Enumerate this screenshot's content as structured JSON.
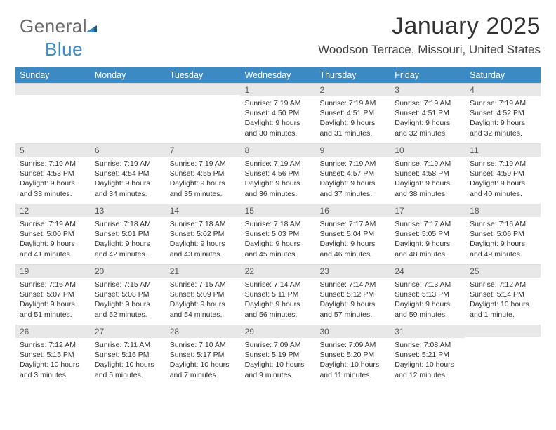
{
  "logo": {
    "part1": "General",
    "part2": "Blue"
  },
  "header": {
    "month_title": "January 2025",
    "location": "Woodson Terrace, Missouri, United States"
  },
  "colors": {
    "header_bg": "#3b8ac4",
    "daybar_bg": "#e8e8e8",
    "text": "#333333",
    "logo_gray": "#6a6a6a",
    "logo_blue": "#3b8ac4"
  },
  "weekdays": [
    "Sunday",
    "Monday",
    "Tuesday",
    "Wednesday",
    "Thursday",
    "Friday",
    "Saturday"
  ],
  "weeks": [
    [
      null,
      null,
      null,
      {
        "n": "1",
        "sr": "7:19 AM",
        "ss": "4:50 PM",
        "dl": "9 hours and 30 minutes."
      },
      {
        "n": "2",
        "sr": "7:19 AM",
        "ss": "4:51 PM",
        "dl": "9 hours and 31 minutes."
      },
      {
        "n": "3",
        "sr": "7:19 AM",
        "ss": "4:51 PM",
        "dl": "9 hours and 32 minutes."
      },
      {
        "n": "4",
        "sr": "7:19 AM",
        "ss": "4:52 PM",
        "dl": "9 hours and 32 minutes."
      }
    ],
    [
      {
        "n": "5",
        "sr": "7:19 AM",
        "ss": "4:53 PM",
        "dl": "9 hours and 33 minutes."
      },
      {
        "n": "6",
        "sr": "7:19 AM",
        "ss": "4:54 PM",
        "dl": "9 hours and 34 minutes."
      },
      {
        "n": "7",
        "sr": "7:19 AM",
        "ss": "4:55 PM",
        "dl": "9 hours and 35 minutes."
      },
      {
        "n": "8",
        "sr": "7:19 AM",
        "ss": "4:56 PM",
        "dl": "9 hours and 36 minutes."
      },
      {
        "n": "9",
        "sr": "7:19 AM",
        "ss": "4:57 PM",
        "dl": "9 hours and 37 minutes."
      },
      {
        "n": "10",
        "sr": "7:19 AM",
        "ss": "4:58 PM",
        "dl": "9 hours and 38 minutes."
      },
      {
        "n": "11",
        "sr": "7:19 AM",
        "ss": "4:59 PM",
        "dl": "9 hours and 40 minutes."
      }
    ],
    [
      {
        "n": "12",
        "sr": "7:19 AM",
        "ss": "5:00 PM",
        "dl": "9 hours and 41 minutes."
      },
      {
        "n": "13",
        "sr": "7:18 AM",
        "ss": "5:01 PM",
        "dl": "9 hours and 42 minutes."
      },
      {
        "n": "14",
        "sr": "7:18 AM",
        "ss": "5:02 PM",
        "dl": "9 hours and 43 minutes."
      },
      {
        "n": "15",
        "sr": "7:18 AM",
        "ss": "5:03 PM",
        "dl": "9 hours and 45 minutes."
      },
      {
        "n": "16",
        "sr": "7:17 AM",
        "ss": "5:04 PM",
        "dl": "9 hours and 46 minutes."
      },
      {
        "n": "17",
        "sr": "7:17 AM",
        "ss": "5:05 PM",
        "dl": "9 hours and 48 minutes."
      },
      {
        "n": "18",
        "sr": "7:16 AM",
        "ss": "5:06 PM",
        "dl": "9 hours and 49 minutes."
      }
    ],
    [
      {
        "n": "19",
        "sr": "7:16 AM",
        "ss": "5:07 PM",
        "dl": "9 hours and 51 minutes."
      },
      {
        "n": "20",
        "sr": "7:15 AM",
        "ss": "5:08 PM",
        "dl": "9 hours and 52 minutes."
      },
      {
        "n": "21",
        "sr": "7:15 AM",
        "ss": "5:09 PM",
        "dl": "9 hours and 54 minutes."
      },
      {
        "n": "22",
        "sr": "7:14 AM",
        "ss": "5:11 PM",
        "dl": "9 hours and 56 minutes."
      },
      {
        "n": "23",
        "sr": "7:14 AM",
        "ss": "5:12 PM",
        "dl": "9 hours and 57 minutes."
      },
      {
        "n": "24",
        "sr": "7:13 AM",
        "ss": "5:13 PM",
        "dl": "9 hours and 59 minutes."
      },
      {
        "n": "25",
        "sr": "7:12 AM",
        "ss": "5:14 PM",
        "dl": "10 hours and 1 minute."
      }
    ],
    [
      {
        "n": "26",
        "sr": "7:12 AM",
        "ss": "5:15 PM",
        "dl": "10 hours and 3 minutes."
      },
      {
        "n": "27",
        "sr": "7:11 AM",
        "ss": "5:16 PM",
        "dl": "10 hours and 5 minutes."
      },
      {
        "n": "28",
        "sr": "7:10 AM",
        "ss": "5:17 PM",
        "dl": "10 hours and 7 minutes."
      },
      {
        "n": "29",
        "sr": "7:09 AM",
        "ss": "5:19 PM",
        "dl": "10 hours and 9 minutes."
      },
      {
        "n": "30",
        "sr": "7:09 AM",
        "ss": "5:20 PM",
        "dl": "10 hours and 11 minutes."
      },
      {
        "n": "31",
        "sr": "7:08 AM",
        "ss": "5:21 PM",
        "dl": "10 hours and 12 minutes."
      },
      null
    ]
  ],
  "labels": {
    "sunrise": "Sunrise:",
    "sunset": "Sunset:",
    "daylight": "Daylight:"
  }
}
